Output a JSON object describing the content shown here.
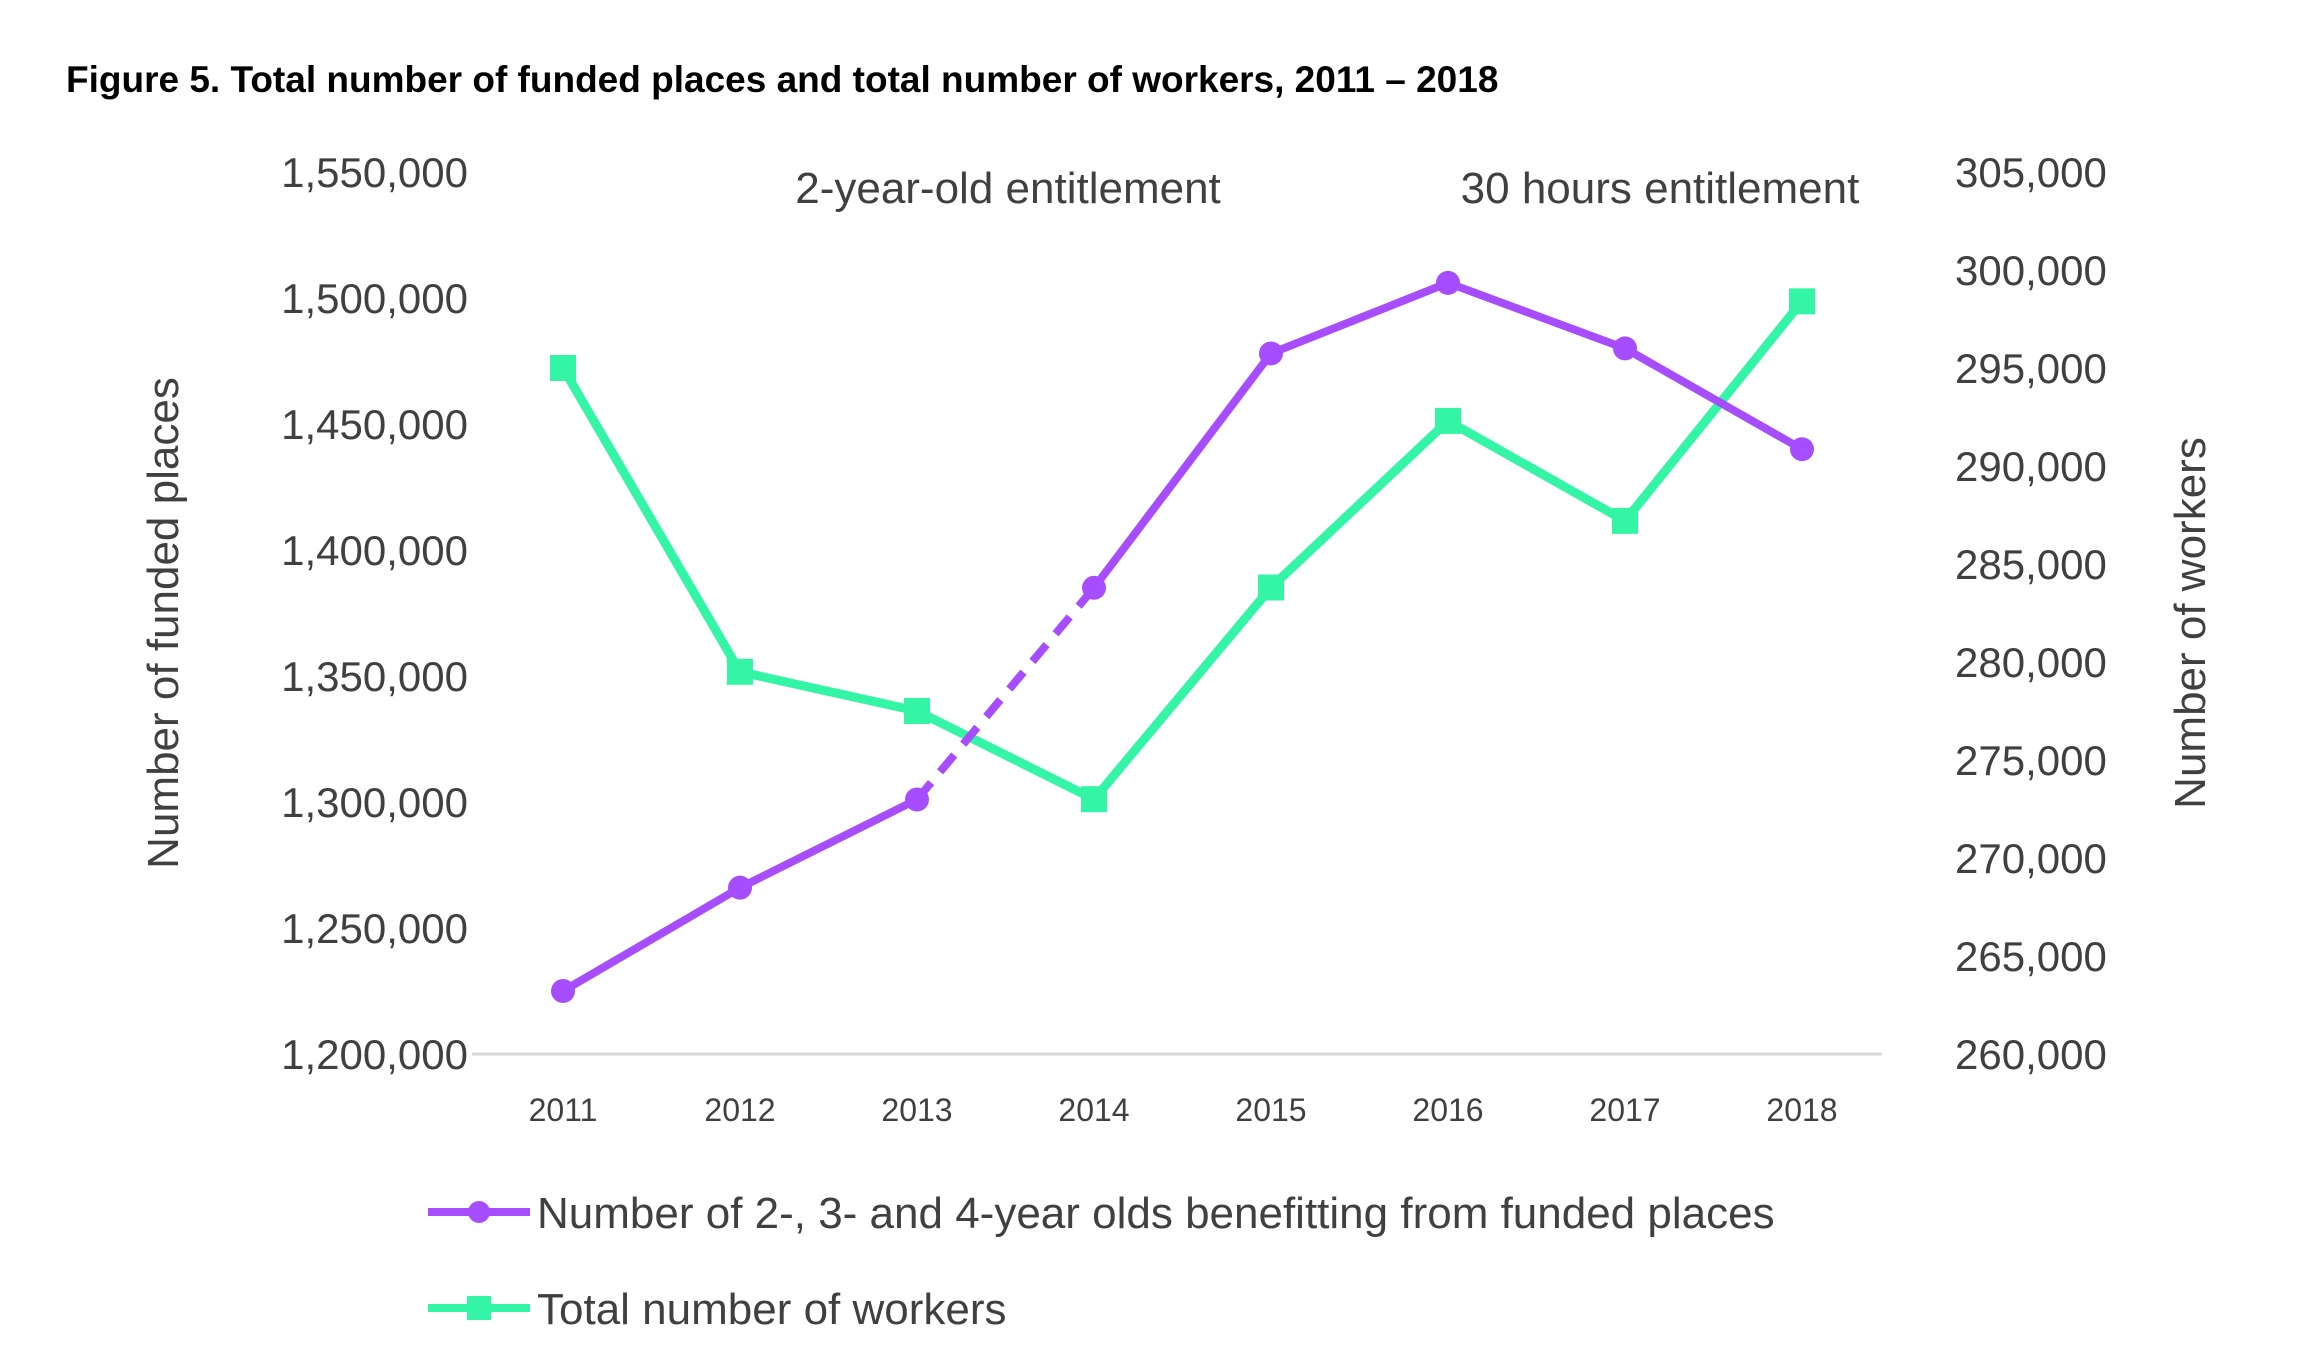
{
  "title": "Figure 5. Total number of funded places and total number of workers, 2011 – 2018",
  "chart_data": {
    "type": "line",
    "categories": [
      "2011",
      "2012",
      "2013",
      "2014",
      "2015",
      "2016",
      "2017",
      "2018"
    ],
    "annotations": [
      "2-year-old entitlement",
      "30 hours entitlement"
    ],
    "y_left": {
      "label": "Number of funded places",
      "range": [
        1200000,
        1550000
      ],
      "ticks": [
        "1,200,000",
        "1,250,000",
        "1,300,000",
        "1,350,000",
        "1,400,000",
        "1,450,000",
        "1,500,000",
        "1,550,000"
      ],
      "tick_values": [
        1200000,
        1250000,
        1300000,
        1350000,
        1400000,
        1450000,
        1500000,
        1550000
      ]
    },
    "y_right": {
      "label": "Number of workers",
      "range": [
        260000,
        305000
      ],
      "ticks": [
        "260,000",
        "265,000",
        "270,000",
        "275,000",
        "280,000",
        "285,000",
        "290,000",
        "295,000",
        "300,000",
        "305,000"
      ],
      "tick_values": [
        260000,
        265000,
        270000,
        275000,
        280000,
        285000,
        290000,
        295000,
        300000,
        305000
      ]
    },
    "series": [
      {
        "name": "Number of 2-, 3- and 4-year olds benefitting from funded places",
        "axis": "left",
        "color": "#a64dff",
        "marker": "circle",
        "values": [
          1225000,
          1266000,
          1301000,
          1385000,
          1478000,
          1506000,
          1480000,
          1440000
        ],
        "dashed_segment": [
          "2013",
          "2014"
        ]
      },
      {
        "name": "Total number of workers",
        "axis": "right",
        "color": "#33f5a5",
        "marker": "square",
        "values": [
          295000,
          279500,
          277500,
          273000,
          283800,
          292300,
          287200,
          298400
        ]
      }
    ],
    "grid": false,
    "legend": "bottom"
  },
  "colors": {
    "places": "#a64dff",
    "workers": "#33f5a5",
    "axis_line": "#d9d9d9",
    "text": "#404040"
  }
}
